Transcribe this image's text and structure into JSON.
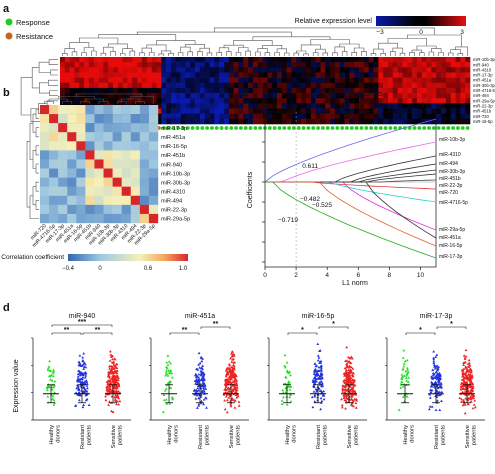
{
  "panel_a": {
    "label": "a",
    "legend": [
      {
        "text": "Response",
        "color": "#22cc22"
      },
      {
        "text": "Resistance",
        "color": "#c8641e"
      }
    ],
    "colorbar": {
      "title": "Relative expression level",
      "ticks": [
        "−3",
        "0",
        "3"
      ]
    },
    "rows": [
      "miR-10b-3p",
      "miR-940",
      "miR-4310",
      "miR-17-3p",
      "miR-451a",
      "miR-30b-3p",
      "miR-4716-5p",
      "miR-494",
      "miR-29a-5p",
      "miR-22-3p",
      "miR-451b",
      "miR-720",
      "miR-16-5p"
    ],
    "n_resistance": 21,
    "n_response": 64
  },
  "panel_b": {
    "label": "b",
    "labels": [
      "miR-720",
      "miR-4716-5p",
      "miR-17-3p",
      "miR-451a",
      "miR-16-5p",
      "miR-451b",
      "miR-940",
      "miR-10b-3p",
      "miR-30b-3p",
      "miR-4310",
      "miR-494",
      "miR-22-3p",
      "miR-29a-5p"
    ],
    "colorbar": {
      "title": "Correlation coefficient",
      "ticks": [
        "−0.4",
        "0",
        "0.6",
        "1.0"
      ]
    }
  },
  "panel_c": {
    "label": "c",
    "top_axis_title": "No. of coefficients",
    "top_ticks": [
      "0",
      "4",
      "7",
      "10",
      "12"
    ],
    "xlabel": "L1 norm",
    "ylabel": "Coefficients",
    "xticks": [
      "0",
      "2",
      "4",
      "6",
      "8",
      "10"
    ],
    "yticks": [
      "0.6",
      "0.4",
      "0.2",
      "0.0",
      "−0.2",
      "−0.4",
      "−0.6",
      "−0.8"
    ],
    "annotations": [
      "0.611",
      "−0.482",
      "−0.525",
      "−0.719"
    ],
    "line_labels": [
      "miR-940",
      "miR-10b-3p",
      "miR-4310",
      "miR-494",
      "miR-30b-3p",
      "miR-451b",
      "miR-22-3p",
      "miR-720",
      "miR-4716-5p",
      "miR-29a-5p",
      "miR-451a",
      "miR-16-5p",
      "miR-17-3p"
    ]
  },
  "panel_d": {
    "label": "d",
    "ylabel": "Expression value",
    "group_labels": [
      [
        "Healthy",
        "donors"
      ],
      [
        "Resistant",
        "patients"
      ],
      [
        "Sensitive",
        "patients"
      ]
    ],
    "panels": [
      {
        "title": "miR-940",
        "stars": [
          "***",
          "**",
          "**"
        ]
      },
      {
        "title": "miR-451a",
        "stars": [
          "**",
          "**"
        ]
      },
      {
        "title": "miR-16-5p",
        "stars": [
          "*",
          "*"
        ]
      },
      {
        "title": "miR-17-3p",
        "stars": [
          "*",
          "*"
        ]
      }
    ],
    "colors": {
      "healthy": "#22dd22",
      "resistant": "#2233dd",
      "sensitive": "#ee2222"
    }
  }
}
